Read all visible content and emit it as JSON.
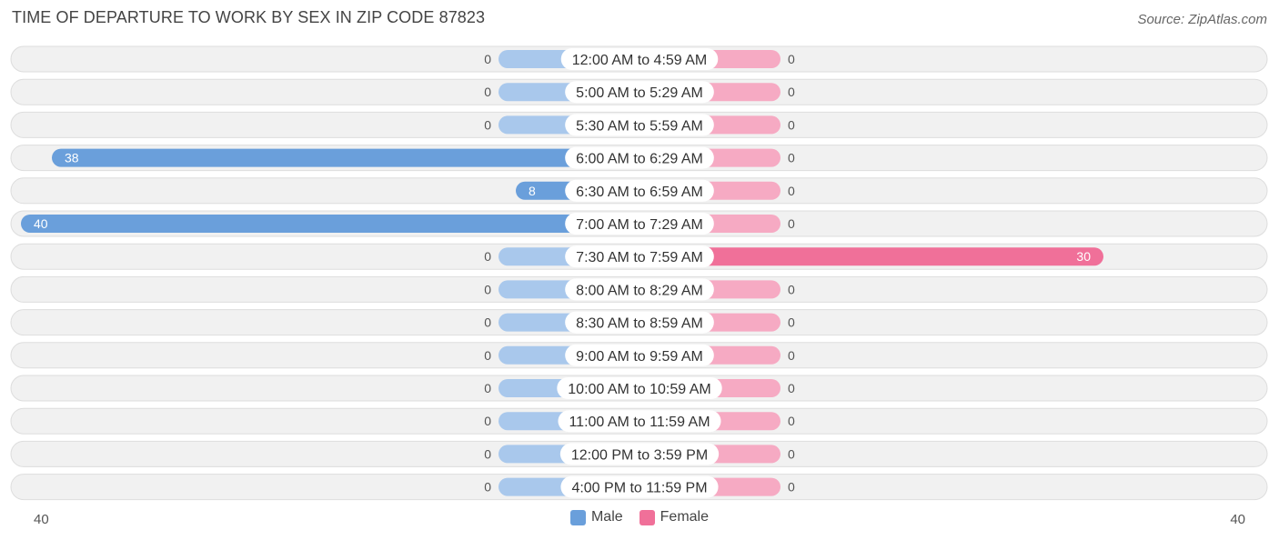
{
  "title": "TIME OF DEPARTURE TO WORK BY SEX IN ZIP CODE 87823",
  "source": "Source: ZipAtlas.com",
  "colors": {
    "male": "#6a9fdb",
    "male_light": "#a9c8ec",
    "female": "#f07099",
    "female_light": "#f6aac3",
    "row_bg": "#f1f1f1",
    "row_border": "#dddddd"
  },
  "legend": {
    "male_label": "Male",
    "female_label": "Female"
  },
  "axis": {
    "left_label": "40",
    "right_label": "40"
  },
  "chart_data": {
    "type": "bar",
    "orientation": "horizontal-diverging",
    "title": "TIME OF DEPARTURE TO WORK BY SEX IN ZIP CODE 87823",
    "xlim": [
      -40,
      40
    ],
    "categories": [
      "12:00 AM to 4:59 AM",
      "5:00 AM to 5:29 AM",
      "5:30 AM to 5:59 AM",
      "6:00 AM to 6:29 AM",
      "6:30 AM to 6:59 AM",
      "7:00 AM to 7:29 AM",
      "7:30 AM to 7:59 AM",
      "8:00 AM to 8:29 AM",
      "8:30 AM to 8:59 AM",
      "9:00 AM to 9:59 AM",
      "10:00 AM to 10:59 AM",
      "11:00 AM to 11:59 AM",
      "12:00 PM to 3:59 PM",
      "4:00 PM to 11:59 PM"
    ],
    "series": [
      {
        "name": "Male",
        "values": [
          0,
          0,
          0,
          38,
          8,
          40,
          0,
          0,
          0,
          0,
          0,
          0,
          0,
          0
        ]
      },
      {
        "name": "Female",
        "values": [
          0,
          0,
          0,
          0,
          0,
          0,
          30,
          0,
          0,
          0,
          0,
          0,
          0,
          0
        ]
      }
    ],
    "legend_position": "bottom-center"
  }
}
